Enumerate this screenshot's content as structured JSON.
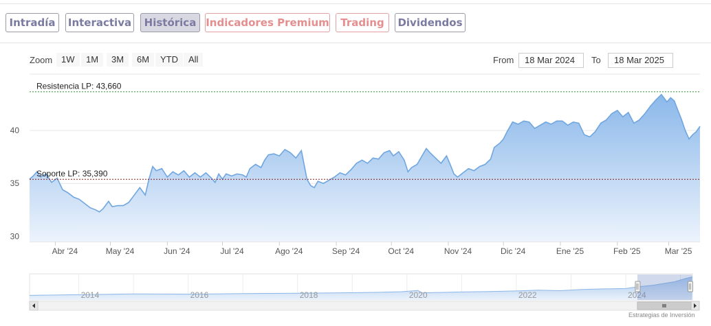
{
  "tabs": [
    {
      "label": "Intradía",
      "style": "purple"
    },
    {
      "label": "Interactiva",
      "style": "purple"
    },
    {
      "label": "Histórica",
      "style": "active"
    },
    {
      "label": "Indicadores Premium",
      "style": "red"
    },
    {
      "label": "Trading",
      "style": "red"
    },
    {
      "label": "Dividendos",
      "style": "purple"
    }
  ],
  "zoom": {
    "label": "Zoom",
    "buttons": [
      "1W",
      "1M",
      "3M",
      "6M",
      "YTD",
      "All"
    ]
  },
  "range": {
    "from_label": "From",
    "from_value": "18 Mar 2024",
    "to_label": "To",
    "to_value": "18 Mar 2025"
  },
  "colors": {
    "line": "#6fa6df",
    "fill_top": "#8bb8ea",
    "fill_bottom": "#ecf3fc",
    "resistance": "#2f8f2f",
    "support": "#8b1a1a",
    "tab_purple": "#7b7ba2",
    "tab_red": "#e48f8f"
  },
  "chart_data": {
    "type": "area",
    "yticks": [
      30,
      35,
      40
    ],
    "ylim": [
      29.5,
      45.2
    ],
    "xlim": [
      "2024-03-18",
      "2025-03-18"
    ],
    "xticks": [
      {
        "label": "Abr '24",
        "date": "2024-04-01"
      },
      {
        "label": "May '24",
        "date": "2024-05-01"
      },
      {
        "label": "Jun '24",
        "date": "2024-06-01"
      },
      {
        "label": "Jul '24",
        "date": "2024-07-01"
      },
      {
        "label": "Ago '24",
        "date": "2024-08-01"
      },
      {
        "label": "Sep '24",
        "date": "2024-09-01"
      },
      {
        "label": "Oct '24",
        "date": "2024-10-01"
      },
      {
        "label": "Nov '24",
        "date": "2024-11-01"
      },
      {
        "label": "Dic '24",
        "date": "2024-12-01"
      },
      {
        "label": "Ene '25",
        "date": "2025-01-01"
      },
      {
        "label": "Feb '25",
        "date": "2025-02-01"
      },
      {
        "label": "Mar '25",
        "date": "2025-03-01"
      }
    ],
    "resistance": {
      "label": "Resistencia LP: 43,660",
      "value": 43.66
    },
    "support": {
      "label": "Soporte LP: 35,390",
      "value": 35.39
    },
    "series": [
      {
        "points": [
          [
            "2024-03-18",
            35.4
          ],
          [
            "2024-03-20",
            35.7
          ],
          [
            "2024-03-22",
            36.1
          ],
          [
            "2024-03-24",
            35.6
          ],
          [
            "2024-03-27",
            35.9
          ],
          [
            "2024-03-30",
            35.1
          ],
          [
            "2024-04-02",
            35.5
          ],
          [
            "2024-04-05",
            34.4
          ],
          [
            "2024-04-08",
            34.1
          ],
          [
            "2024-04-11",
            33.7
          ],
          [
            "2024-04-14",
            33.5
          ],
          [
            "2024-04-17",
            33.1
          ],
          [
            "2024-04-20",
            32.7
          ],
          [
            "2024-04-23",
            32.5
          ],
          [
            "2024-04-25",
            32.3
          ],
          [
            "2024-04-27",
            32.6
          ],
          [
            "2024-04-30",
            33.3
          ],
          [
            "2024-05-02",
            32.8
          ],
          [
            "2024-05-05",
            32.9
          ],
          [
            "2024-05-08",
            32.9
          ],
          [
            "2024-05-11",
            33.2
          ],
          [
            "2024-05-14",
            33.9
          ],
          [
            "2024-05-17",
            34.6
          ],
          [
            "2024-05-20",
            33.9
          ],
          [
            "2024-05-22",
            35.4
          ],
          [
            "2024-05-24",
            36.6
          ],
          [
            "2024-05-26",
            36.2
          ],
          [
            "2024-05-29",
            36.4
          ],
          [
            "2024-06-01",
            35.6
          ],
          [
            "2024-06-04",
            36.1
          ],
          [
            "2024-06-07",
            35.8
          ],
          [
            "2024-06-10",
            36.2
          ],
          [
            "2024-06-13",
            35.6
          ],
          [
            "2024-06-16",
            36.0
          ],
          [
            "2024-06-19",
            35.6
          ],
          [
            "2024-06-22",
            36.0
          ],
          [
            "2024-06-25",
            35.5
          ],
          [
            "2024-06-27",
            35.1
          ],
          [
            "2024-06-29",
            35.9
          ],
          [
            "2024-07-01",
            35.4
          ],
          [
            "2024-07-03",
            35.9
          ],
          [
            "2024-07-06",
            35.7
          ],
          [
            "2024-07-09",
            35.9
          ],
          [
            "2024-07-12",
            35.8
          ],
          [
            "2024-07-14",
            35.6
          ],
          [
            "2024-07-16",
            36.4
          ],
          [
            "2024-07-19",
            36.8
          ],
          [
            "2024-07-22",
            36.5
          ],
          [
            "2024-07-24",
            37.2
          ],
          [
            "2024-07-26",
            37.7
          ],
          [
            "2024-07-29",
            37.8
          ],
          [
            "2024-08-01",
            37.6
          ],
          [
            "2024-08-04",
            38.2
          ],
          [
            "2024-08-07",
            37.9
          ],
          [
            "2024-08-10",
            37.4
          ],
          [
            "2024-08-13",
            38.1
          ],
          [
            "2024-08-14",
            37.2
          ],
          [
            "2024-08-16",
            35.4
          ],
          [
            "2024-08-18",
            34.8
          ],
          [
            "2024-08-20",
            34.6
          ],
          [
            "2024-08-22",
            35.2
          ],
          [
            "2024-08-25",
            35.0
          ],
          [
            "2024-08-28",
            35.3
          ],
          [
            "2024-08-31",
            35.6
          ],
          [
            "2024-09-03",
            36.0
          ],
          [
            "2024-09-06",
            35.8
          ],
          [
            "2024-09-09",
            36.3
          ],
          [
            "2024-09-12",
            36.9
          ],
          [
            "2024-09-15",
            37.2
          ],
          [
            "2024-09-18",
            36.9
          ],
          [
            "2024-09-21",
            37.4
          ],
          [
            "2024-09-24",
            37.3
          ],
          [
            "2024-09-27",
            37.9
          ],
          [
            "2024-09-30",
            38.1
          ],
          [
            "2024-10-02",
            37.6
          ],
          [
            "2024-10-05",
            38.0
          ],
          [
            "2024-10-08",
            37.2
          ],
          [
            "2024-10-10",
            36.1
          ],
          [
            "2024-10-12",
            36.5
          ],
          [
            "2024-10-15",
            36.8
          ],
          [
            "2024-10-18",
            37.7
          ],
          [
            "2024-10-20",
            38.3
          ],
          [
            "2024-10-22",
            37.9
          ],
          [
            "2024-10-25",
            37.4
          ],
          [
            "2024-10-28",
            36.9
          ],
          [
            "2024-10-31",
            37.6
          ],
          [
            "2024-11-02",
            36.8
          ],
          [
            "2024-11-04",
            35.9
          ],
          [
            "2024-11-06",
            35.6
          ],
          [
            "2024-11-09",
            36.0
          ],
          [
            "2024-11-12",
            36.4
          ],
          [
            "2024-11-15",
            36.2
          ],
          [
            "2024-11-18",
            36.6
          ],
          [
            "2024-11-21",
            36.8
          ],
          [
            "2024-11-24",
            37.3
          ],
          [
            "2024-11-26",
            38.4
          ],
          [
            "2024-11-29",
            38.8
          ],
          [
            "2024-12-01",
            39.2
          ],
          [
            "2024-12-03",
            39.9
          ],
          [
            "2024-12-06",
            40.8
          ],
          [
            "2024-12-09",
            40.6
          ],
          [
            "2024-12-12",
            40.9
          ],
          [
            "2024-12-15",
            40.8
          ],
          [
            "2024-12-18",
            40.2
          ],
          [
            "2024-12-21",
            40.5
          ],
          [
            "2024-12-24",
            40.8
          ],
          [
            "2024-12-27",
            40.6
          ],
          [
            "2024-12-30",
            40.9
          ],
          [
            "2025-01-02",
            40.9
          ],
          [
            "2025-01-05",
            40.5
          ],
          [
            "2025-01-08",
            40.8
          ],
          [
            "2025-01-11",
            40.7
          ],
          [
            "2025-01-14",
            39.6
          ],
          [
            "2025-01-17",
            39.4
          ],
          [
            "2025-01-20",
            39.9
          ],
          [
            "2025-01-23",
            40.7
          ],
          [
            "2025-01-26",
            41.0
          ],
          [
            "2025-01-29",
            41.6
          ],
          [
            "2025-02-01",
            41.9
          ],
          [
            "2025-02-04",
            41.3
          ],
          [
            "2025-02-07",
            41.7
          ],
          [
            "2025-02-10",
            40.7
          ],
          [
            "2025-02-13",
            41.0
          ],
          [
            "2025-02-16",
            41.6
          ],
          [
            "2025-02-19",
            42.3
          ],
          [
            "2025-02-22",
            42.9
          ],
          [
            "2025-02-25",
            43.4
          ],
          [
            "2025-02-28",
            42.7
          ],
          [
            "2025-03-02",
            43.1
          ],
          [
            "2025-03-04",
            42.8
          ],
          [
            "2025-03-06",
            41.9
          ],
          [
            "2025-03-08",
            41.0
          ],
          [
            "2025-03-10",
            40.0
          ],
          [
            "2025-03-12",
            39.2
          ],
          [
            "2025-03-14",
            39.6
          ],
          [
            "2025-03-16",
            39.9
          ],
          [
            "2025-03-18",
            40.4
          ]
        ]
      }
    ],
    "navigator": {
      "year_labels": [
        "2014",
        "2016",
        "2018",
        "2020",
        "2022",
        "2024"
      ],
      "range_start_year": 2013.1,
      "range_end_year": 2025.22,
      "history": [
        [
          2013.1,
          12.0
        ],
        [
          2014.0,
          13.0
        ],
        [
          2014.5,
          13.5
        ],
        [
          2015.0,
          14.2
        ],
        [
          2015.5,
          14.0
        ],
        [
          2016.0,
          13.8
        ],
        [
          2016.5,
          14.3
        ],
        [
          2017.0,
          14.8
        ],
        [
          2017.5,
          15.0
        ],
        [
          2018.0,
          15.2
        ],
        [
          2018.5,
          15.6
        ],
        [
          2019.0,
          16.1
        ],
        [
          2019.5,
          16.7
        ],
        [
          2019.9,
          17.6
        ],
        [
          2020.2,
          19.4
        ],
        [
          2020.28,
          15.8
        ],
        [
          2020.6,
          16.5
        ],
        [
          2021.0,
          17.2
        ],
        [
          2021.5,
          17.8
        ],
        [
          2022.0,
          18.8
        ],
        [
          2022.4,
          20.0
        ],
        [
          2022.8,
          19.2
        ],
        [
          2023.2,
          21.0
        ],
        [
          2023.6,
          22.0
        ],
        [
          2024.0,
          22.5
        ],
        [
          2024.2,
          25.0
        ],
        [
          2024.5,
          27.5
        ],
        [
          2024.9,
          33.0
        ],
        [
          2025.1,
          38.0
        ],
        [
          2025.22,
          40.4
        ]
      ],
      "selected": [
        "2024-03-18",
        "2025-03-18"
      ]
    }
  },
  "credits": "Estrategias de Inversión"
}
